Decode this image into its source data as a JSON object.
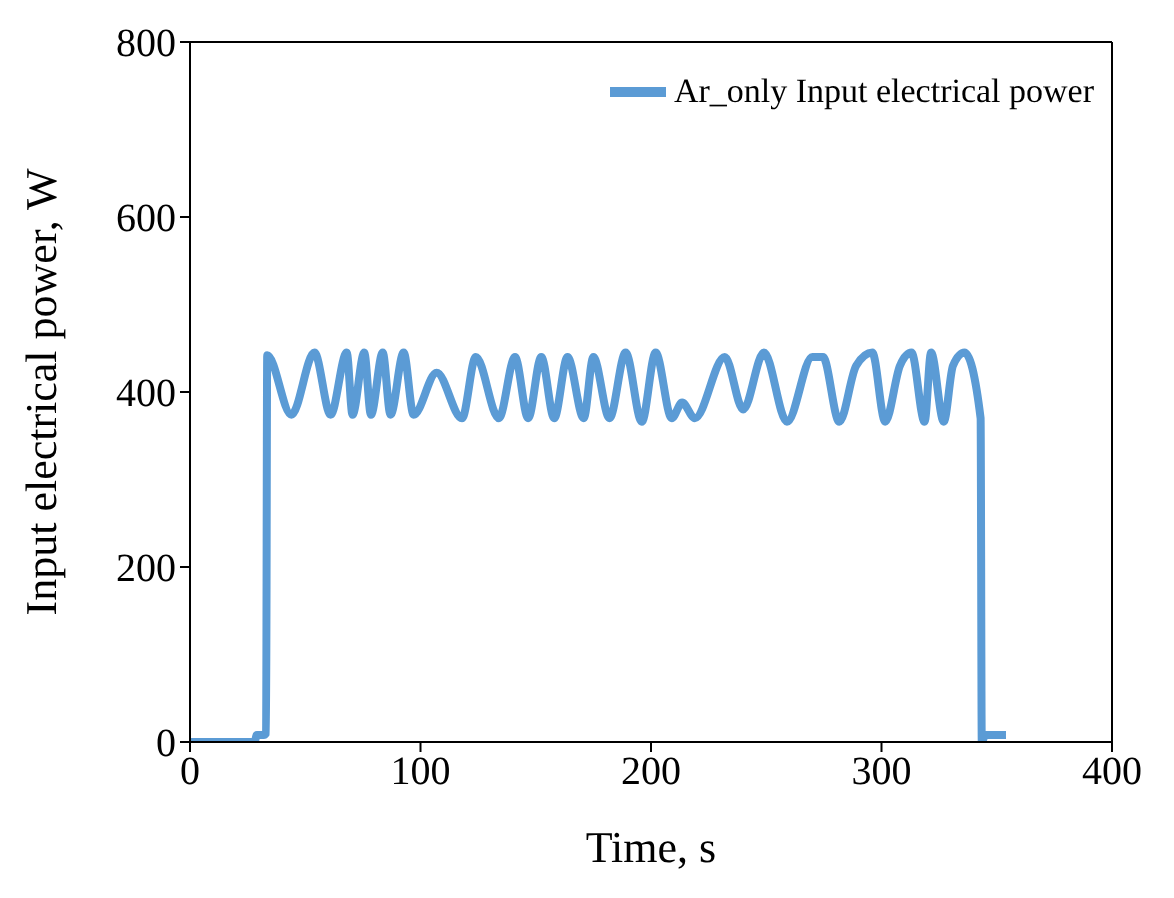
{
  "chart_data": {
    "type": "line",
    "xlabel": "Time, s",
    "ylabel": "Input electrical power, W",
    "xlim": [
      0,
      400
    ],
    "xticks": [
      0,
      100,
      200,
      300,
      400
    ],
    "ylim": [
      0,
      800
    ],
    "yticks": [
      0,
      200,
      400,
      600,
      800
    ],
    "legend": "top right",
    "marker": "none",
    "line_style": "solid",
    "series": [
      {
        "name": "Ar_only Input electrical power",
        "color": "#5b9bd5",
        "x": [
          0,
          28,
          29,
          32,
          33,
          33.5,
          44,
          54,
          61,
          68,
          70.5,
          75.6,
          78.5,
          83.6,
          87,
          92.7,
          97,
          107,
          118,
          124,
          134,
          141,
          146.7,
          152.4,
          158,
          163.8,
          170.8,
          175,
          182,
          189,
          196,
          202,
          209,
          213.5,
          219,
          232,
          240,
          249,
          259,
          270,
          274.6,
          281.7,
          289,
          296,
          301.6,
          308,
          313,
          318.7,
          321.5,
          327,
          331,
          336,
          343,
          343.5,
          345,
          354
        ],
        "values": [
          0,
          0,
          8,
          8,
          10,
          442,
          374,
          445,
          374,
          445,
          374,
          445,
          374,
          445,
          374,
          445,
          374,
          422,
          370,
          440,
          370,
          440,
          370,
          440,
          370,
          440,
          370,
          440,
          370,
          445,
          366,
          445,
          370,
          388,
          370,
          440,
          380,
          445,
          366,
          440,
          440,
          366,
          430,
          445,
          366,
          430,
          445,
          366,
          445,
          366,
          430,
          445,
          370,
          0,
          8,
          8
        ]
      }
    ]
  }
}
